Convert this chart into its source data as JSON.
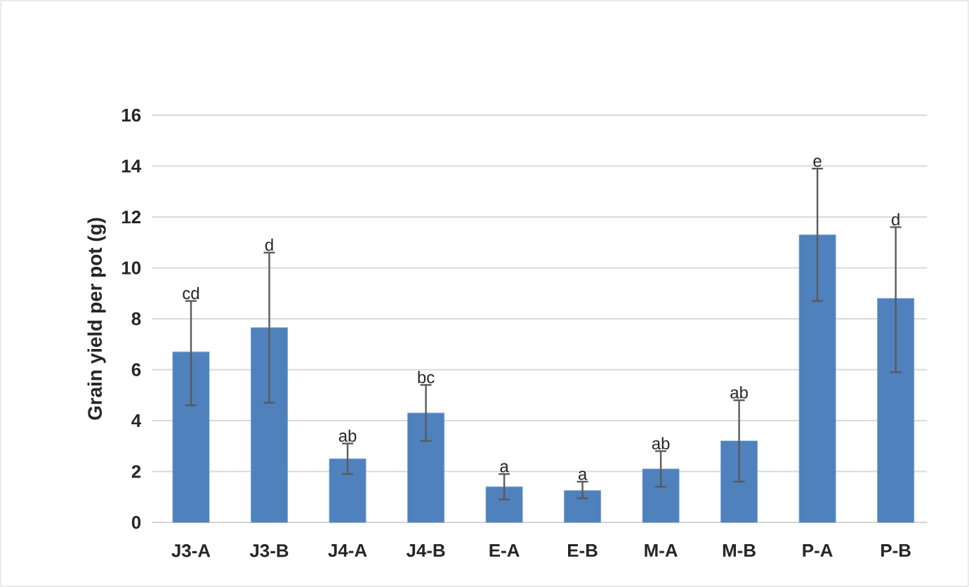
{
  "chart_data": {
    "type": "bar",
    "ylabel": "Grain yield per pot (g)",
    "categories": [
      "J3-A",
      "J3-B",
      "J4-A",
      "J4-B",
      "E-A",
      "E-B",
      "M-A",
      "M-B",
      "P-A",
      "P-B"
    ],
    "values": [
      6.7,
      7.65,
      2.5,
      4.3,
      1.4,
      1.25,
      2.1,
      3.2,
      11.3,
      8.8
    ],
    "errors": [
      [
        4.6,
        8.7
      ],
      [
        4.7,
        10.6
      ],
      [
        1.9,
        3.1
      ],
      [
        3.2,
        5.4
      ],
      [
        0.9,
        1.9
      ],
      [
        0.95,
        1.6
      ],
      [
        1.4,
        2.8
      ],
      [
        1.6,
        4.8
      ],
      [
        8.7,
        13.9
      ],
      [
        5.9,
        11.6
      ]
    ],
    "color": "#4f81bd",
    "ylim": [
      0,
      16
    ],
    "yticks": [
      0,
      2,
      4,
      6,
      8,
      10,
      12,
      14,
      16
    ],
    "grid": "y",
    "annotations": [
      {
        "text": "cd",
        "x": "J3-A",
        "y": 8.7
      },
      {
        "text": "d",
        "x": "J3-B",
        "y": 10.6
      },
      {
        "text": "ab",
        "x": "J4-A",
        "y": 3.1
      },
      {
        "text": "bc",
        "x": "J4-B",
        "y": 5.4
      },
      {
        "text": "a",
        "x": "E-A",
        "y": 1.9
      },
      {
        "text": "a",
        "x": "E-B",
        "y": 1.6
      },
      {
        "text": "ab",
        "x": "M-A",
        "y": 2.8
      },
      {
        "text": "ab",
        "x": "M-B",
        "y": 4.8
      },
      {
        "text": "e",
        "x": "P-A",
        "y": 13.9
      },
      {
        "text": "d",
        "x": "P-B",
        "y": 11.6
      }
    ]
  }
}
